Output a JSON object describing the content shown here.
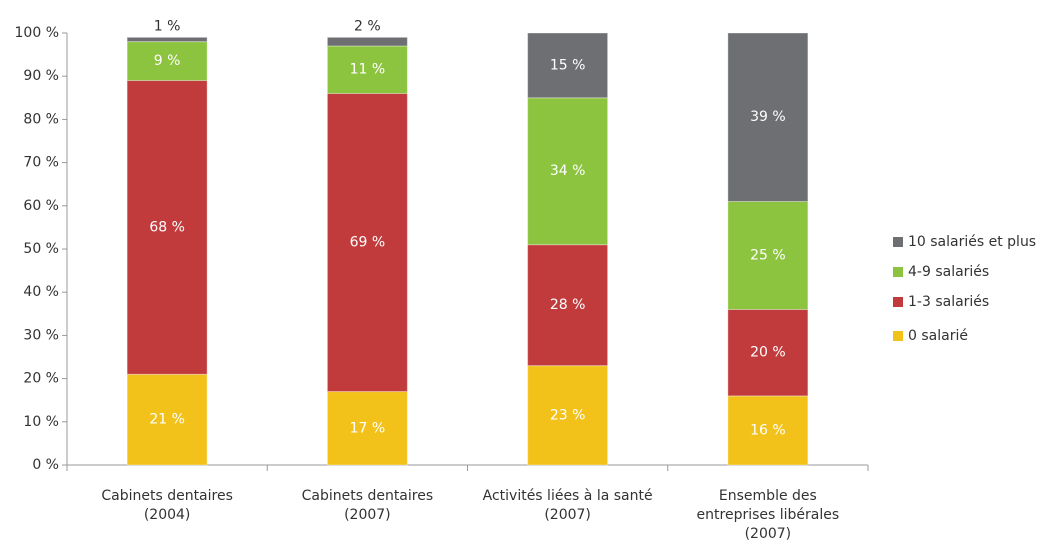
{
  "chart_data": {
    "type": "stacked_bar",
    "categories": [
      "Cabinets dentaires\n(2004)",
      "Cabinets dentaires\n(2007)",
      "Activités liées à la santé\n(2007)",
      "Ensemble des\nentreprises libérales\n(2007)"
    ],
    "series": [
      {
        "name": "0 salarié",
        "color": "#f2c21b",
        "values": [
          21,
          17,
          23,
          16
        ],
        "value_labels": [
          "21 %",
          "17 %",
          "23 %",
          "16 %"
        ]
      },
      {
        "name": "1-3 salariés",
        "color": "#c23b3c",
        "values": [
          68,
          69,
          28,
          20
        ],
        "value_labels": [
          "68 %",
          "69 %",
          "28 %",
          "20 %"
        ]
      },
      {
        "name": "4-9 salariés",
        "color": "#8cc43f",
        "values": [
          9,
          11,
          34,
          25
        ],
        "value_labels": [
          "9 %",
          "11 %",
          "34 %",
          "25 %"
        ]
      },
      {
        "name": "10 salariés et plus",
        "color": "#6e6f72",
        "values": [
          1,
          2,
          15,
          39
        ],
        "value_labels": [
          "1 %",
          "2 %",
          "15 %",
          "39 %"
        ]
      }
    ],
    "ylim": [
      0,
      100
    ],
    "yticks": [
      {
        "value": 0,
        "label": "0 %"
      },
      {
        "value": 10,
        "label": "10 %"
      },
      {
        "value": 20,
        "label": "20 %"
      },
      {
        "value": 30,
        "label": "30 %"
      },
      {
        "value": 40,
        "label": "40 %"
      },
      {
        "value": 50,
        "label": "50 %"
      },
      {
        "value": 60,
        "label": "60 %"
      },
      {
        "value": 70,
        "label": "70 %"
      },
      {
        "value": 80,
        "label": "80 %"
      },
      {
        "value": 90,
        "label": "90 %"
      },
      {
        "value": 100,
        "label": "100 %"
      }
    ],
    "legend": "right"
  }
}
